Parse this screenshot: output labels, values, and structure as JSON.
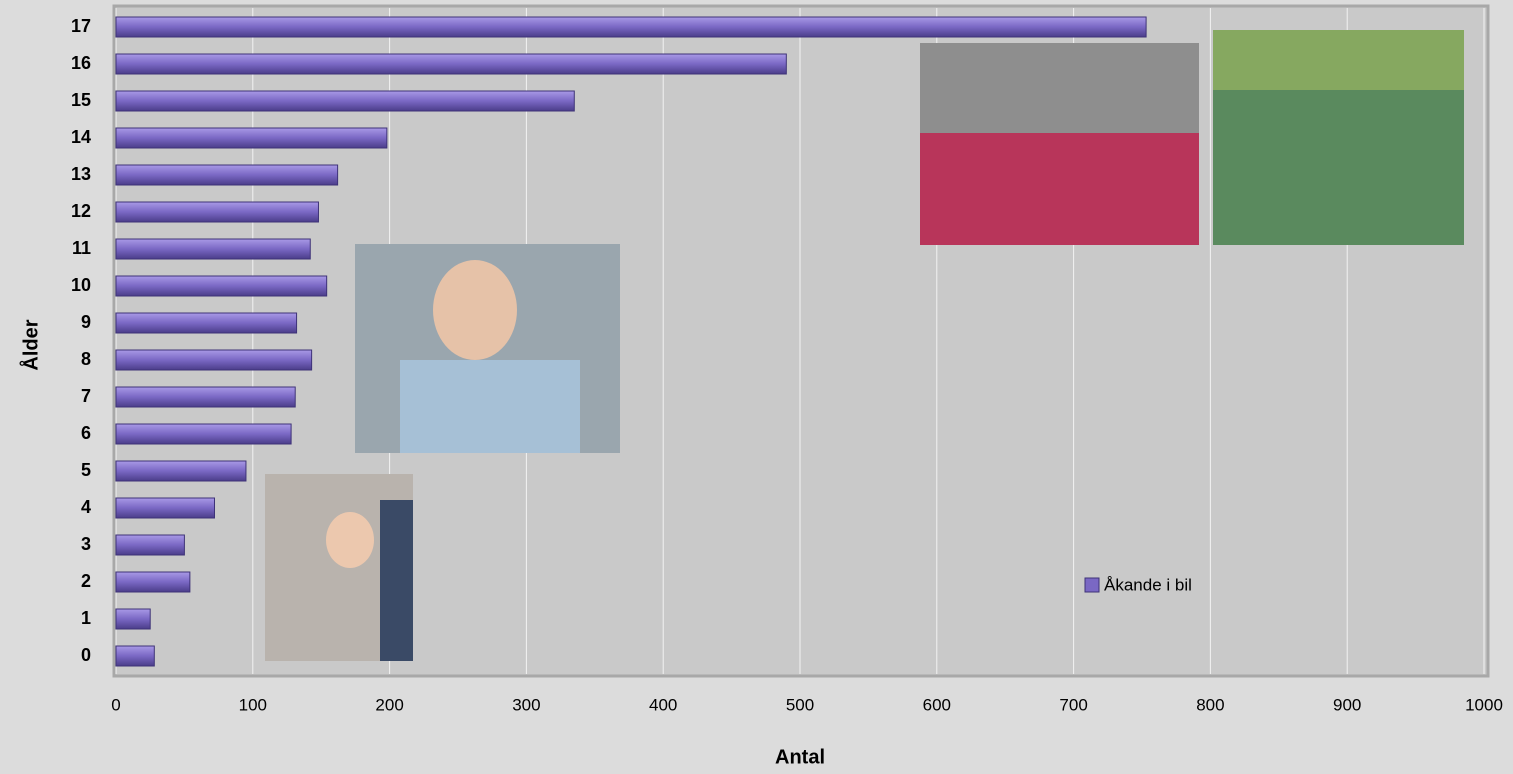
{
  "chart_data": {
    "type": "bar",
    "orientation": "horizontal",
    "x_label": "Antal",
    "y_label": "Ålder",
    "categories": [
      "0",
      "1",
      "2",
      "3",
      "4",
      "5",
      "6",
      "7",
      "8",
      "9",
      "10",
      "11",
      "12",
      "13",
      "14",
      "15",
      "16",
      "17"
    ],
    "series": [
      {
        "name": "Åkande i bil",
        "color": "#7a68c4",
        "values": [
          28,
          25,
          54,
          50,
          72,
          95,
          128,
          131,
          143,
          132,
          154,
          142,
          148,
          162,
          198,
          335,
          490,
          753
        ]
      }
    ],
    "xlim": [
      0,
      1000
    ],
    "xticks": [
      0,
      100,
      200,
      300,
      400,
      500,
      600,
      700,
      800,
      900,
      1000
    ],
    "grid": true,
    "legend": "lower-right"
  }
}
